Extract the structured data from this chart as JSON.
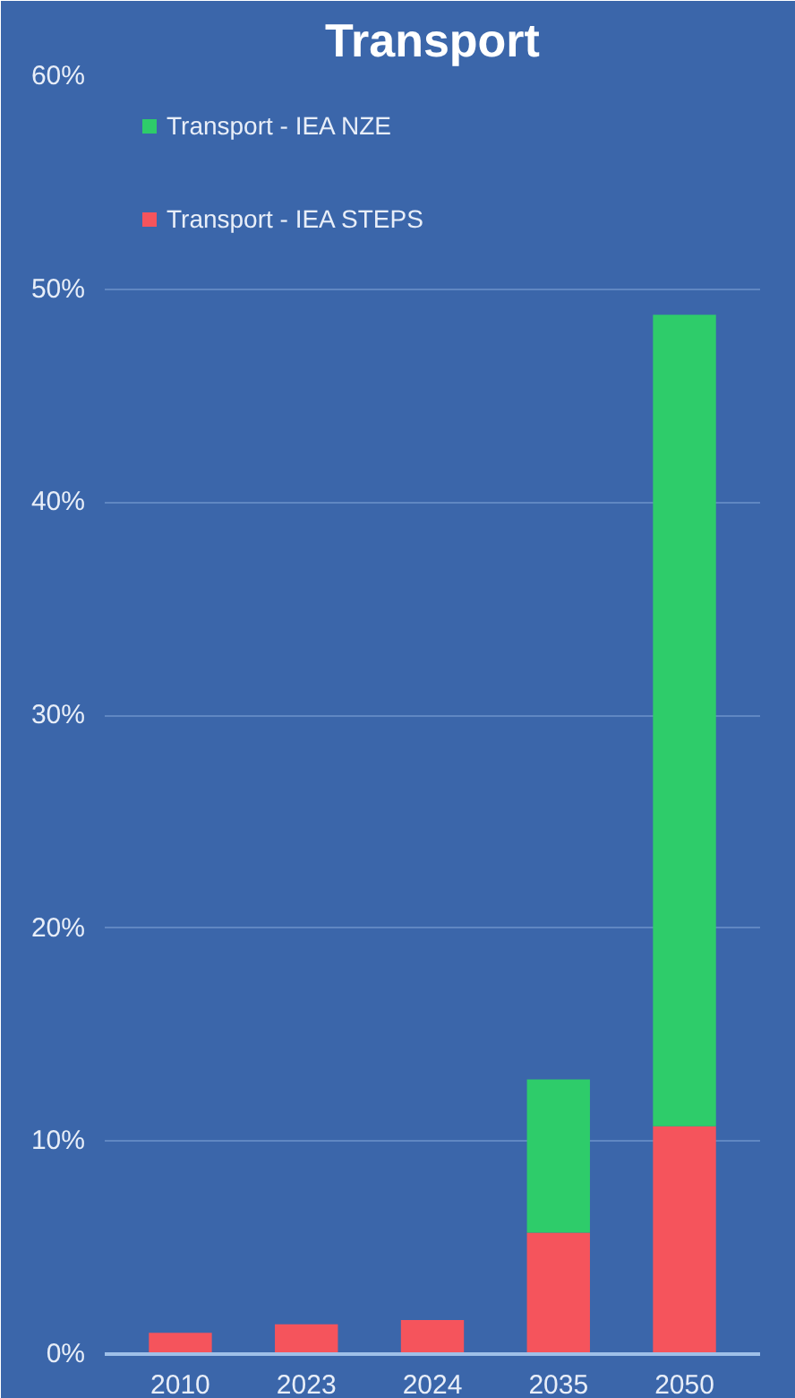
{
  "chart_data": {
    "type": "bar",
    "title": "Transport",
    "stacked": true,
    "categories": [
      "2010",
      "2023",
      "2024",
      "2035",
      "2050"
    ],
    "series": [
      {
        "name": "Transport - IEA STEPS",
        "color": "#f5545c",
        "values": [
          1.0,
          1.4,
          1.6,
          5.7,
          10.7
        ]
      },
      {
        "name": "Transport - IEA NZE",
        "color": "#2ecc6a",
        "values": [
          null,
          null,
          null,
          7.2,
          38.1
        ]
      }
    ],
    "ylim": [
      0,
      60
    ],
    "yticks": [
      {
        "value": 0,
        "label": "0%"
      },
      {
        "value": 10,
        "label": "10%"
      },
      {
        "value": 20,
        "label": "20%"
      },
      {
        "value": 30,
        "label": "30%"
      },
      {
        "value": 40,
        "label": "40%"
      },
      {
        "value": 50,
        "label": "50%"
      },
      {
        "value": 60,
        "label": "60%"
      }
    ],
    "grid": "y",
    "legend": "top left"
  }
}
